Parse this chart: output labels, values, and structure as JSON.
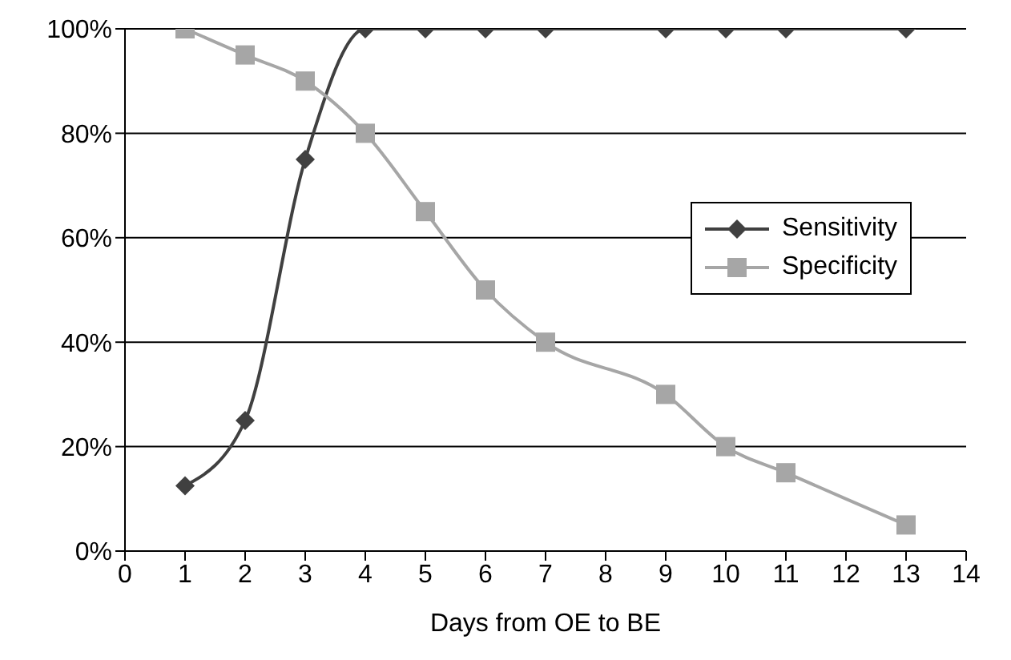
{
  "chart_data": {
    "type": "line",
    "xlabel": "Days from OE to BE",
    "x": [
      1,
      2,
      3,
      4,
      5,
      6,
      7,
      9,
      10,
      11,
      13
    ],
    "series": [
      {
        "name": "Sensitivity",
        "color": "#404040",
        "marker": "diamond",
        "values": [
          12.5,
          25,
          75,
          100,
          100,
          100,
          100,
          100,
          100,
          100,
          100
        ]
      },
      {
        "name": "Specificity",
        "color": "#a6a6a6",
        "marker": "square",
        "values": [
          100,
          95,
          90,
          80,
          65,
          50,
          40,
          30,
          20,
          15,
          5
        ]
      }
    ],
    "xlim": [
      0,
      14
    ],
    "xticks": [
      0,
      1,
      2,
      3,
      4,
      5,
      6,
      7,
      8,
      9,
      10,
      11,
      12,
      13,
      14
    ],
    "ylim": [
      0,
      100
    ],
    "yticks": [
      {
        "value": 0,
        "label": "0%"
      },
      {
        "value": 20,
        "label": "20%"
      },
      {
        "value": 40,
        "label": "40%"
      },
      {
        "value": 60,
        "label": "60%"
      },
      {
        "value": 80,
        "label": "80%"
      },
      {
        "value": 100,
        "label": "100%"
      }
    ],
    "grid": "y",
    "legend": "right",
    "line_style": "solid"
  }
}
